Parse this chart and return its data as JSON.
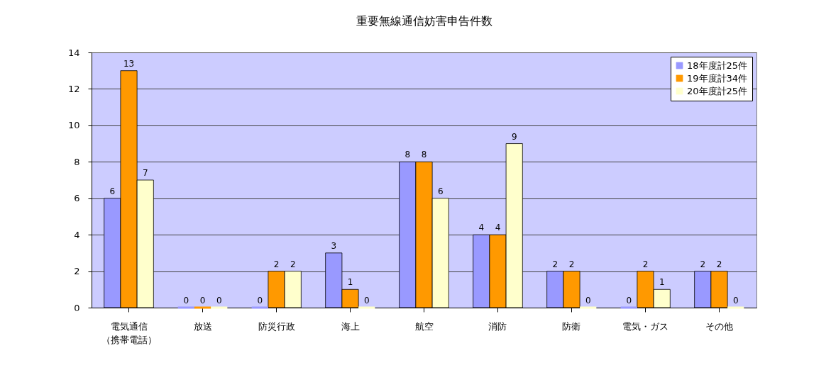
{
  "chart_data": {
    "type": "bar",
    "title": "重要無線通信妨害申告件数",
    "categories": [
      "電気通信（携帯電話）",
      "放送",
      "防災行政",
      "海上",
      "航空",
      "消防",
      "防衛",
      "電気・ガス",
      "その他"
    ],
    "series": [
      {
        "name": "18年度計25件",
        "color": "#9999ff",
        "values": [
          6,
          0,
          0,
          3,
          8,
          4,
          2,
          0,
          2
        ]
      },
      {
        "name": "19年度計34件",
        "color": "#ff9900",
        "values": [
          13,
          0,
          2,
          1,
          8,
          4,
          2,
          2,
          2
        ]
      },
      {
        "name": "20年度計25件",
        "color": "#ffffcc",
        "values": [
          7,
          0,
          2,
          0,
          6,
          9,
          0,
          1,
          0
        ]
      }
    ],
    "ylim": [
      0,
      14
    ],
    "yticks": [
      0,
      2,
      4,
      6,
      8,
      10,
      12,
      14
    ],
    "grid": "y",
    "legend": "top right",
    "data_labels": true
  }
}
